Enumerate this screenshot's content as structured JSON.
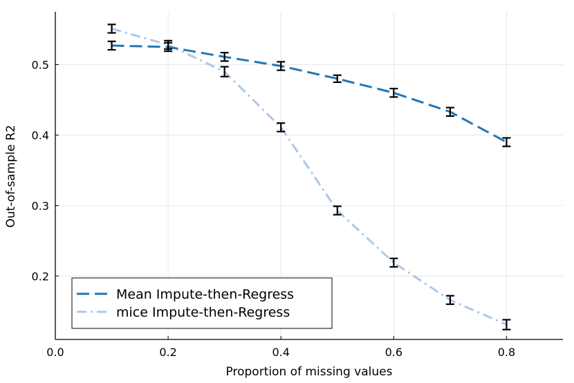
{
  "chart_data": {
    "type": "line",
    "title": "",
    "xlabel": "Proportion of missing values",
    "ylabel": "Out-of-sample R2",
    "xlim": [
      0.0,
      0.9
    ],
    "ylim": [
      0.11,
      0.575
    ],
    "xticks": [
      0.0,
      0.2,
      0.4,
      0.6,
      0.8
    ],
    "xtick_labels": [
      "0.0",
      "0.2",
      "0.4",
      "0.6",
      "0.8"
    ],
    "yticks": [
      0.2,
      0.3,
      0.4,
      0.5
    ],
    "ytick_labels": [
      "0.2",
      "0.3",
      "0.4",
      "0.5"
    ],
    "grid": true,
    "legend_position": "bottom-left",
    "x": [
      0.1,
      0.2,
      0.3,
      0.4,
      0.5,
      0.6,
      0.7,
      0.8
    ],
    "series": [
      {
        "name": "Mean Impute-then-Regress",
        "color": "#1f77b4",
        "style": "dashed",
        "values": [
          0.527,
          0.525,
          0.511,
          0.498,
          0.48,
          0.46,
          0.433,
          0.39
        ],
        "errors": [
          0.006,
          0.006,
          0.006,
          0.006,
          0.005,
          0.006,
          0.006,
          0.006
        ]
      },
      {
        "name": "mice Impute-then-Regress",
        "color": "#aec7e8",
        "style": "dashdot",
        "values": [
          0.551,
          0.528,
          0.49,
          0.411,
          0.293,
          0.219,
          0.166,
          0.131
        ],
        "errors": [
          0.006,
          0.006,
          0.007,
          0.006,
          0.006,
          0.006,
          0.006,
          0.007
        ]
      }
    ],
    "errorbar_color": "#000000"
  }
}
